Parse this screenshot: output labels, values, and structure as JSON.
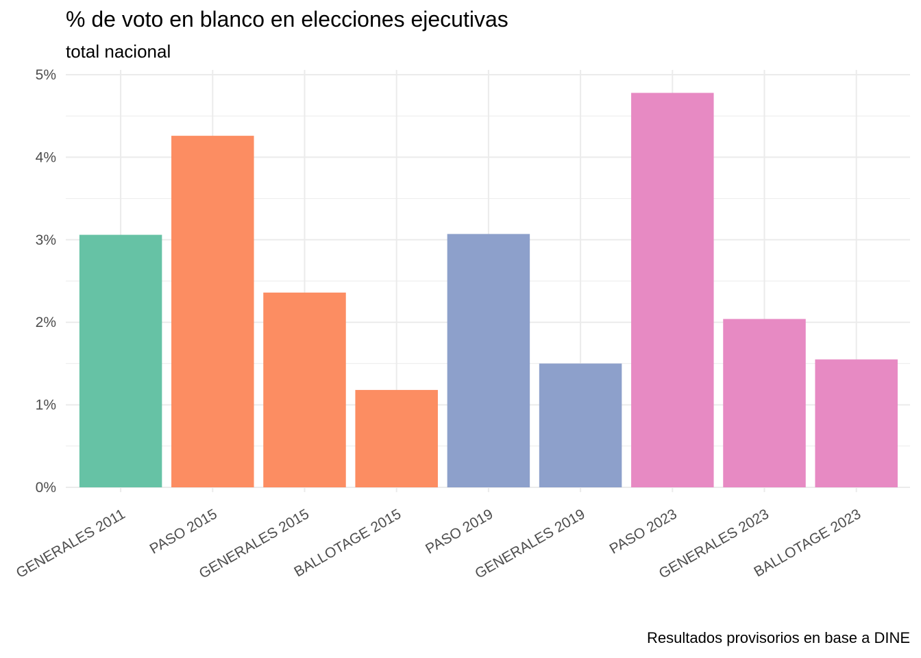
{
  "chart_data": {
    "type": "bar",
    "title": "% de voto en blanco en elecciones ejecutivas",
    "subtitle": "total nacional",
    "caption": "Resultados provisorios en base a DINE",
    "xlabel": "",
    "ylabel": "",
    "categories": [
      "GENERALES 2011",
      "PASO 2015",
      "GENERALES 2015",
      "BALLOTAGE 2015",
      "PASO 2019",
      "GENERALES 2019",
      "PASO 2023",
      "GENERALES 2023",
      "BALLOTAGE 2023"
    ],
    "values": [
      3.06,
      4.26,
      2.36,
      1.18,
      3.07,
      1.5,
      4.78,
      2.04,
      1.55
    ],
    "bar_colors": [
      "#66c2a5",
      "#fc8d62",
      "#fc8d62",
      "#fc8d62",
      "#8da0cb",
      "#8da0cb",
      "#e78ac3",
      "#e78ac3",
      "#e78ac3"
    ],
    "ylim": [
      0,
      5
    ],
    "y_ticks": [
      0,
      1,
      2,
      3,
      4,
      5
    ],
    "y_tick_labels": [
      "0%",
      "1%",
      "2%",
      "3%",
      "4%",
      "5%"
    ],
    "grid": true,
    "legend": "none",
    "grid_color": "#ebebeb"
  }
}
